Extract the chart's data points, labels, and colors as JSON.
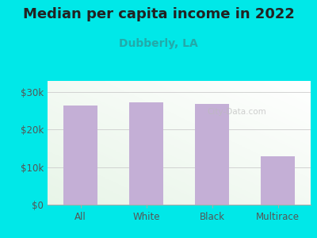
{
  "title": "Median per capita income in 2022",
  "subtitle": "Dubberly, LA",
  "categories": [
    "All",
    "White",
    "Black",
    "Multirace"
  ],
  "values": [
    26500,
    27200,
    26800,
    13000
  ],
  "bar_color": "#c4afd6",
  "bg_outer": "#00e8e8",
  "title_fontsize": 13,
  "title_color": "#222222",
  "subtitle_fontsize": 10,
  "subtitle_color": "#22aaaa",
  "tick_label_color": "#555555",
  "yticks": [
    0,
    10000,
    20000,
    30000
  ],
  "ytick_labels": [
    "$0",
    "$10k",
    "$20k",
    "$30k"
  ],
  "ylim": [
    0,
    33000
  ],
  "watermark": "City-Data.com",
  "watermark_color": "#bbbbbb"
}
